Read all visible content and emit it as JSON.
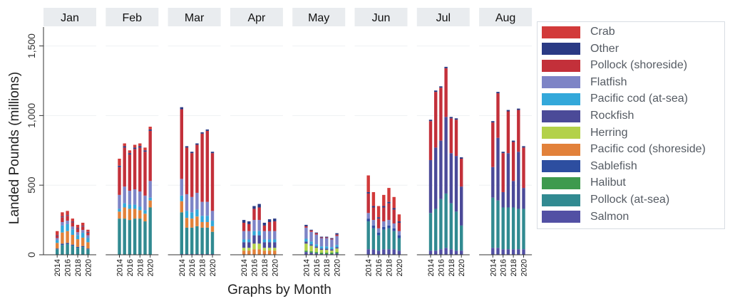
{
  "chart_data": {
    "type": "bar",
    "stacked": true,
    "ylabel": "Landed Pounds (millions)",
    "xlabel": "Graphs by Month",
    "ylim": [
      0,
      1600
    ],
    "yticks": [
      0,
      500,
      1000,
      1500
    ],
    "ytick_labels": [
      "0",
      "500",
      "1,000",
      "1,500"
    ],
    "xtick_labels": [
      "2014",
      "2016",
      "2018",
      "2020"
    ],
    "legend_position": "right",
    "years": [
      2014,
      2015,
      2016,
      2017,
      2018,
      2019,
      2020
    ],
    "legend": [
      {
        "name": "Crab",
        "color": "#d23a3a"
      },
      {
        "name": "Other",
        "color": "#2a3a84"
      },
      {
        "name": "Pollock (shoreside)",
        "color": "#c3303a"
      },
      {
        "name": "Flatfish",
        "color": "#7d84c6"
      },
      {
        "name": "Pacific cod (at-sea)",
        "color": "#33a8da"
      },
      {
        "name": "Rockfish",
        "color": "#4b4a98"
      },
      {
        "name": "Herring",
        "color": "#b3d14a"
      },
      {
        "name": "Pacific cod (shoreside)",
        "color": "#e2813a"
      },
      {
        "name": "Sablefish",
        "color": "#2d4ea0"
      },
      {
        "name": "Halibut",
        "color": "#3e9a4e"
      },
      {
        "name": "Pollock (at-sea)",
        "color": "#318a91"
      },
      {
        "name": "Salmon",
        "color": "#5250a4"
      }
    ],
    "stack_order": [
      "Salmon",
      "Pollock (at-sea)",
      "Halibut",
      "Sablefish",
      "Pacific cod (shoreside)",
      "Herring",
      "Rockfish",
      "Pacific cod (at-sea)",
      "Flatfish",
      "Pollock (shoreside)",
      "Other",
      "Crab"
    ],
    "months": [
      {
        "name": "Jan",
        "totals": [
          170,
          305,
          315,
          260,
          215,
          230,
          180
        ],
        "stacks": {
          "Pollock (at-sea)": [
            40,
            70,
            75,
            65,
            50,
            55,
            40
          ],
          "Sablefish": [
            5,
            10,
            10,
            8,
            7,
            8,
            5
          ],
          "Pacific cod (shoreside)": [
            40,
            80,
            85,
            70,
            55,
            60,
            45
          ],
          "Pacific cod (at-sea)": [
            20,
            50,
            50,
            40,
            30,
            35,
            30
          ],
          "Flatfish": [
            15,
            25,
            25,
            20,
            20,
            20,
            20
          ],
          "Pollock (shoreside)": [
            15,
            35,
            35,
            30,
            25,
            25,
            20
          ],
          "Other": [
            5,
            5,
            5,
            5,
            5,
            5,
            5
          ],
          "Crab": [
            30,
            30,
            30,
            22,
            23,
            22,
            15
          ]
        }
      },
      {
        "name": "Feb",
        "totals": [
          690,
          800,
          750,
          790,
          800,
          770,
          920
        ],
        "stacks": {
          "Pollock (at-sea)": [
            260,
            260,
            250,
            260,
            260,
            240,
            340
          ],
          "Pacific cod (shoreside)": [
            50,
            80,
            80,
            70,
            60,
            55,
            50
          ],
          "Pacific cod (at-sea)": [
            20,
            30,
            30,
            30,
            25,
            25,
            20
          ],
          "Flatfish": [
            100,
            120,
            100,
            110,
            110,
            105,
            120
          ],
          "Pollock (shoreside)": [
            200,
            280,
            260,
            290,
            315,
            315,
            360
          ],
          "Other": [
            10,
            10,
            10,
            10,
            10,
            10,
            10
          ],
          "Crab": [
            50,
            20,
            20,
            20,
            20,
            20,
            20
          ]
        }
      },
      {
        "name": "Mar",
        "totals": [
          1060,
          780,
          740,
          800,
          880,
          900,
          740
        ],
        "stacks": {
          "Salmon": [
            5,
            5,
            5,
            5,
            5,
            5,
            5
          ],
          "Pollock (at-sea)": [
            300,
            190,
            190,
            200,
            190,
            190,
            160
          ],
          "Pacific cod (shoreside)": [
            80,
            70,
            65,
            70,
            40,
            40,
            40
          ],
          "Pacific cod (at-sea)": [
            40,
            50,
            45,
            50,
            45,
            45,
            40
          ],
          "Flatfish": [
            120,
            120,
            110,
            120,
            100,
            100,
            70
          ],
          "Pollock (shoreside)": [
            500,
            335,
            315,
            345,
            490,
            510,
            415
          ],
          "Other": [
            15,
            10,
            10,
            10,
            10,
            10,
            10
          ]
        }
      },
      {
        "name": "Apr",
        "totals": [
          250,
          240,
          350,
          365,
          230,
          255,
          260
        ],
        "stacks": {
          "Rockfish": [
            40,
            40,
            60,
            60,
            40,
            40,
            40
          ],
          "Herring": [
            20,
            20,
            40,
            40,
            20,
            20,
            20
          ],
          "Pacific cod (shoreside)": [
            30,
            30,
            40,
            40,
            30,
            30,
            30
          ],
          "Pacific cod (at-sea)": [
            20,
            20,
            30,
            30,
            20,
            20,
            20
          ],
          "Flatfish": [
            60,
            60,
            80,
            80,
            60,
            60,
            60
          ],
          "Pollock (shoreside)": [
            60,
            50,
            80,
            90,
            40,
            65,
            70
          ],
          "Other": [
            20,
            20,
            20,
            25,
            20,
            20,
            20
          ]
        }
      },
      {
        "name": "May",
        "totals": [
          215,
          180,
          160,
          130,
          130,
          120,
          155
        ],
        "stacks": {
          "Salmon": [
            20,
            15,
            10,
            5,
            5,
            5,
            10
          ],
          "Halibut": [
            10,
            10,
            10,
            10,
            10,
            10,
            10
          ],
          "Herring": [
            50,
            40,
            30,
            20,
            20,
            15,
            25
          ],
          "Pacific cod (at-sea)": [
            20,
            20,
            15,
            15,
            15,
            15,
            15
          ],
          "Flatfish": [
            80,
            70,
            70,
            60,
            60,
            55,
            65
          ],
          "Rockfish": [
            15,
            10,
            10,
            10,
            10,
            10,
            10
          ],
          "Pollock (shoreside)": [
            10,
            10,
            10,
            5,
            5,
            5,
            10
          ],
          "Other": [
            10,
            5,
            5,
            5,
            5,
            5,
            10
          ]
        }
      },
      {
        "name": "Jun",
        "totals": [
          570,
          450,
          350,
          430,
          480,
          415,
          290
        ],
        "stacks": {
          "Salmon": [
            40,
            40,
            30,
            40,
            40,
            40,
            30
          ],
          "Pollock (at-sea)": [
            200,
            150,
            110,
            140,
            150,
            130,
            90
          ],
          "Sablefish": [
            20,
            20,
            20,
            20,
            20,
            20,
            20
          ],
          "Flatfish": [
            40,
            40,
            30,
            40,
            40,
            35,
            30
          ],
          "Pollock (shoreside)": [
            140,
            90,
            70,
            100,
            120,
            100,
            60
          ],
          "Other": [
            10,
            10,
            10,
            10,
            10,
            10,
            10
          ],
          "Crab": [
            120,
            100,
            80,
            80,
            100,
            80,
            50
          ]
        }
      },
      {
        "name": "Jul",
        "totals": [
          970,
          1180,
          1210,
          1350,
          990,
          980,
          700
        ],
        "stacks": {
          "Salmon": [
            30,
            30,
            40,
            50,
            40,
            30,
            30
          ],
          "Pollock (at-sea)": [
            270,
            300,
            360,
            390,
            330,
            280,
            180
          ],
          "Pollock (shoreside)": [
            280,
            400,
            380,
            350,
            250,
            260,
            200
          ],
          "Other": [
            10,
            10,
            10,
            10,
            10,
            10,
            10
          ],
          "Rockfish": [
            380,
            440,
            420,
            550,
            360,
            400,
            280
          ]
        }
      },
      {
        "name": "Aug",
        "totals": [
          960,
          1170,
          740,
          1040,
          820,
          1050,
          780
        ],
        "stacks": {
          "Salmon": [
            50,
            50,
            40,
            40,
            40,
            40,
            40
          ],
          "Pollock (at-sea)": [
            360,
            340,
            300,
            300,
            300,
            290,
            290
          ],
          "Pollock (shoreside)": [
            320,
            320,
            280,
            300,
            280,
            300,
            290
          ],
          "Other": [
            10,
            10,
            10,
            10,
            10,
            10,
            10
          ],
          "Rockfish": [
            220,
            450,
            110,
            390,
            190,
            410,
            150
          ]
        }
      }
    ]
  }
}
